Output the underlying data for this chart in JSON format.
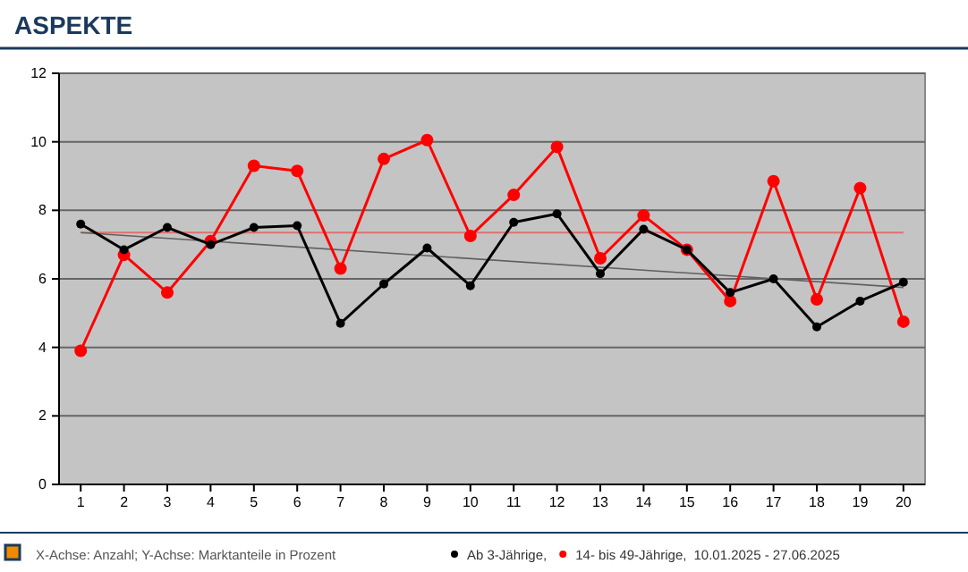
{
  "chart_data": {
    "type": "line",
    "title": "ASPEKTE",
    "x": [
      1,
      2,
      3,
      4,
      5,
      6,
      7,
      8,
      9,
      10,
      11,
      12,
      13,
      14,
      15,
      16,
      17,
      18,
      19,
      20
    ],
    "xlim": [
      0.5,
      20.5
    ],
    "xticks": [
      1,
      2,
      3,
      4,
      5,
      6,
      7,
      8,
      9,
      10,
      11,
      12,
      13,
      14,
      15,
      16,
      17,
      18,
      19,
      20
    ],
    "ylim": [
      0,
      12
    ],
    "yticks": [
      0,
      2,
      4,
      6,
      8,
      10,
      12
    ],
    "grid": "y",
    "legend": "bottom",
    "marker": "circle",
    "line_style": "solid",
    "series": [
      {
        "name": "Ab 3-Jährige,",
        "color": "#000000",
        "values": [
          7.6,
          6.85,
          7.5,
          7.0,
          7.5,
          7.55,
          4.7,
          5.85,
          6.9,
          5.8,
          7.65,
          7.9,
          6.15,
          7.45,
          6.85,
          5.6,
          6.0,
          4.6,
          5.35,
          5.9
        ]
      },
      {
        "name": "14- bis 49-Jährige,",
        "color": "#ff0000",
        "values": [
          3.9,
          6.7,
          5.6,
          7.1,
          9.3,
          9.15,
          6.3,
          9.5,
          10.05,
          7.25,
          8.45,
          9.85,
          6.6,
          7.85,
          6.85,
          5.35,
          8.85,
          5.4,
          8.65,
          4.75
        ]
      },
      {
        "type": "line",
        "color": "#606060",
        "x": [
          1,
          20
        ],
        "values": [
          7.35,
          5.75
        ],
        "marker": "none"
      }
    ],
    "ref_lines": [
      {
        "axis": "y",
        "value": 7.35,
        "color": "#e07070"
      }
    ],
    "annotations": [
      "10.01.2025 - 27.06.2025",
      "X-Achse: Anzahl; Y-Achse: Marktanteile in Prozent"
    ]
  }
}
